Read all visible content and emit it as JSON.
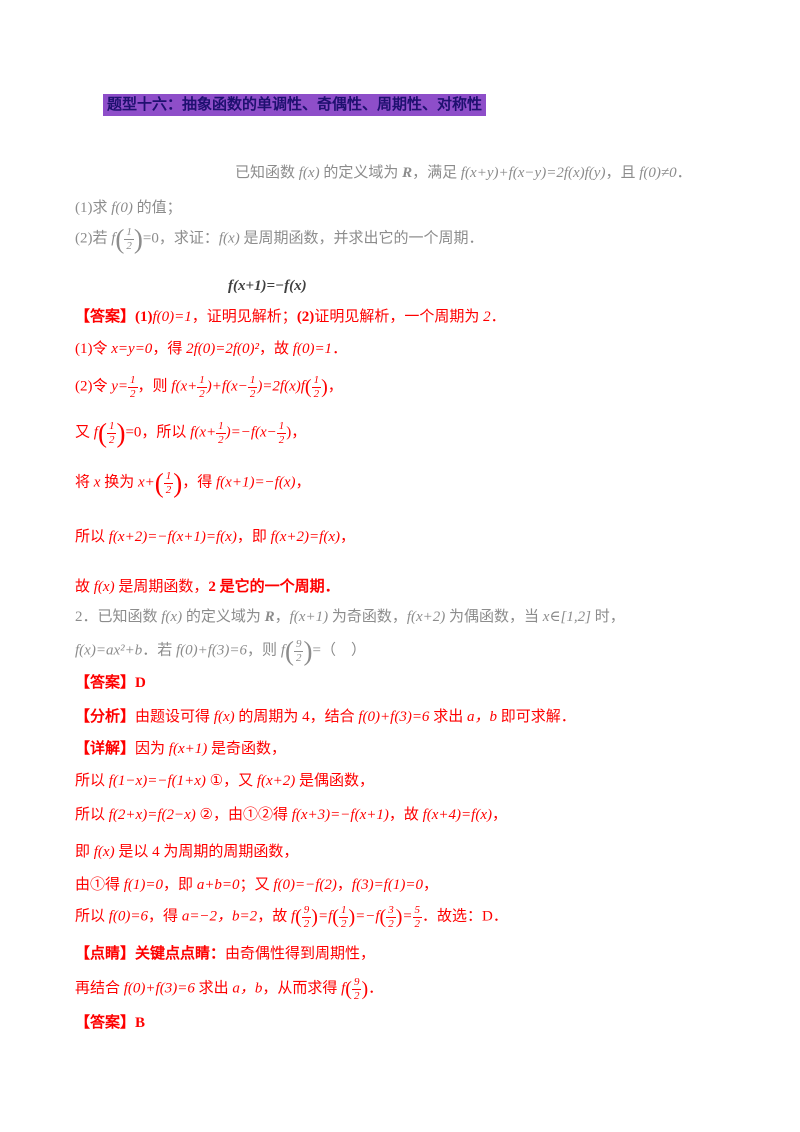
{
  "title": "题型十六：抽象函数的单调性、奇偶性、周期性、对称性",
  "colors": {
    "highlight_purple": "#8e4ec9",
    "title_text": "#1f1070",
    "solution_red": "#fe0000",
    "stem_gray": "#8c8c8c"
  },
  "problem1": {
    "stem": [
      {
        "t": "已知函数 "
      },
      {
        "t": "f(x)",
        "i": true
      },
      {
        "t": " 的定义域为 "
      },
      {
        "t": "R",
        "i": true,
        "b": true
      },
      {
        "t": "，满足 "
      },
      {
        "t": "f(x+y)+f(x−y)=2f(x)f(y)",
        "i": true
      },
      {
        "t": "，且 "
      },
      {
        "t": "f(0)≠0",
        "i": true
      },
      {
        "t": "．"
      }
    ],
    "question1": [
      {
        "t": "(1)求 "
      },
      {
        "t": "f(0)",
        "i": true
      },
      {
        "t": " 的值；"
      }
    ],
    "question2": [
      {
        "t": "(2)若 "
      },
      {
        "t": "f",
        "i": true
      },
      {
        "f": [
          "1",
          "2"
        ],
        "p": true,
        "big": true
      },
      {
        "t": "=0，求证："
      },
      {
        "t": "f(x)",
        "i": true
      },
      {
        "t": " 是周期函数，并求出它的一个周期．"
      }
    ],
    "display_equation": [
      {
        "t": "f(x+1)=−f(x)",
        "i": true,
        "b": true
      }
    ],
    "answer": [
      {
        "t": "【答案】",
        "b": true
      },
      {
        "t": "(1)",
        "b": true
      },
      {
        "t": "f(0)=1",
        "i": true
      },
      {
        "t": "，证明见解析；"
      },
      {
        "t": "(2)",
        "b": true
      },
      {
        "t": "证明见解析，一个周期为 "
      },
      {
        "t": "2",
        "i": true
      },
      {
        "t": "．"
      }
    ],
    "step1": [
      {
        "t": "(1)令 "
      },
      {
        "t": "x=y=0",
        "i": true
      },
      {
        "t": "，得 "
      },
      {
        "t": "2f(0)=2f(0)²",
        "i": true
      },
      {
        "t": "，故 "
      },
      {
        "t": "f(0)=1",
        "i": true
      },
      {
        "t": "．"
      }
    ],
    "step2": [
      {
        "t": "(2)令 "
      },
      {
        "t": "y=",
        "i": true
      },
      {
        "f": [
          "1",
          "2"
        ]
      },
      {
        "t": "，则 "
      },
      {
        "t": "f(x+",
        "i": true
      },
      {
        "f": [
          "1",
          "2"
        ]
      },
      {
        "t": ")+f(x−",
        "i": true
      },
      {
        "f": [
          "1",
          "2"
        ]
      },
      {
        "t": ")=2f(x)f",
        "i": true
      },
      {
        "f": [
          "1",
          "2"
        ],
        "p": true
      },
      {
        "t": "，"
      }
    ],
    "step3": [
      {
        "t": "又 "
      },
      {
        "t": "f",
        "i": true
      },
      {
        "f": [
          "1",
          "2"
        ],
        "p": true,
        "big": true
      },
      {
        "t": "=0，所以 "
      },
      {
        "t": "f(x+",
        "i": true
      },
      {
        "f": [
          "1",
          "2"
        ]
      },
      {
        "t": ")=−f(x−",
        "i": true
      },
      {
        "f": [
          "1",
          "2"
        ]
      },
      {
        "t": ")，"
      }
    ],
    "step4": [
      {
        "t": "将 "
      },
      {
        "t": "x",
        "i": true
      },
      {
        "t": " 换为 "
      },
      {
        "t": "x+",
        "i": true
      },
      {
        "f": [
          "1",
          "2"
        ],
        "p": true,
        "big": true
      },
      {
        "t": "，得 "
      },
      {
        "t": "f(x+1)=−f(x)",
        "i": true
      },
      {
        "t": "，"
      }
    ],
    "step5": [
      {
        "t": "所以 "
      },
      {
        "t": "f(x+2)=−f(x+1)=f(x)",
        "i": true
      },
      {
        "t": "，即 "
      },
      {
        "t": "f(x+2)=f(x)",
        "i": true
      },
      {
        "t": "，"
      }
    ],
    "step6": [
      {
        "t": "故 "
      },
      {
        "t": "f(x)",
        "i": true
      },
      {
        "t": " 是周期函数，"
      },
      {
        "t": "2 是它的一个周期．",
        "b": true
      }
    ]
  },
  "problem2": {
    "stem_line1": [
      {
        "t": "2．已知函数 "
      },
      {
        "t": "f(x)",
        "i": true
      },
      {
        "t": " 的定义域为 "
      },
      {
        "t": "R",
        "i": true,
        "b": true
      },
      {
        "t": "，"
      },
      {
        "t": "f(x+1)",
        "i": true
      },
      {
        "t": " 为奇函数，"
      },
      {
        "t": "f(x+2)",
        "i": true
      },
      {
        "t": " 为偶函数，当 "
      },
      {
        "t": "x∈[1,2]",
        "i": true
      },
      {
        "t": " 时，"
      }
    ],
    "stem_line2": [
      {
        "t": "f(x)=ax²+b",
        "i": true
      },
      {
        "t": "．若 "
      },
      {
        "t": "f(0)+f(3)=6",
        "i": true
      },
      {
        "t": "，则 "
      },
      {
        "t": "f",
        "i": true
      },
      {
        "f": [
          "9",
          "2"
        ],
        "p": true,
        "big": true
      },
      {
        "t": "=（　）"
      }
    ],
    "answer": [
      {
        "t": "【答案】",
        "b": true
      },
      {
        "t": "D",
        "b": true
      }
    ],
    "analysis": [
      {
        "t": "【分析】",
        "b": true
      },
      {
        "t": "由题设可得 "
      },
      {
        "t": "f(x)",
        "i": true
      },
      {
        "t": " 的周期为 4，结合 "
      },
      {
        "t": "f(0)+f(3)=6",
        "i": true
      },
      {
        "t": " 求出 "
      },
      {
        "t": "a，b",
        "i": true
      },
      {
        "t": " 即可求解．"
      }
    ],
    "step1": [
      {
        "t": "【详解】",
        "b": true
      },
      {
        "t": "因为 "
      },
      {
        "t": "f(x+1)",
        "i": true
      },
      {
        "t": " 是奇函数，"
      }
    ],
    "step2": [
      {
        "t": "所以 "
      },
      {
        "t": "f(1−x)=−f(1+x)",
        "i": true
      },
      {
        "t": " ①，又 "
      },
      {
        "t": "f(x+2)",
        "i": true
      },
      {
        "t": " 是偶函数，"
      }
    ],
    "step3": [
      {
        "t": "所以 "
      },
      {
        "t": "f(2+x)=f(2−x)",
        "i": true
      },
      {
        "t": " ②，由①②得 "
      },
      {
        "t": "f(x+3)=−f(x+1)",
        "i": true
      },
      {
        "t": "，故 "
      },
      {
        "t": "f(x+4)=f(x)",
        "i": true
      },
      {
        "t": "，"
      }
    ],
    "step4": [
      {
        "t": "即 "
      },
      {
        "t": "f(x)",
        "i": true
      },
      {
        "t": " 是以 4 为周期的周期函数，"
      }
    ],
    "step5": [
      {
        "t": "由①得 "
      },
      {
        "t": "f(1)=0",
        "i": true
      },
      {
        "t": "，即 "
      },
      {
        "t": "a+b=0",
        "i": true
      },
      {
        "t": "；又 "
      },
      {
        "t": "f(0)=−f(2)",
        "i": true
      },
      {
        "t": "，"
      },
      {
        "t": "f(3)=f(1)=0",
        "i": true
      },
      {
        "t": "，"
      }
    ],
    "step6": [
      {
        "t": "所以 "
      },
      {
        "t": "f(0)=6",
        "i": true
      },
      {
        "t": "，得 "
      },
      {
        "t": "a=−2，b=2",
        "i": true
      },
      {
        "t": "，故 "
      },
      {
        "t": "f",
        "i": true
      },
      {
        "f": [
          "9",
          "2"
        ],
        "p": true
      },
      {
        "t": "=f",
        "i": true
      },
      {
        "f": [
          "1",
          "2"
        ],
        "p": true
      },
      {
        "t": "=−f",
        "i": true
      },
      {
        "f": [
          "3",
          "2"
        ],
        "p": true
      },
      {
        "t": "=",
        "i": true
      },
      {
        "f": [
          "5",
          "2"
        ]
      },
      {
        "t": "．故选：D．"
      }
    ],
    "remark1": [
      {
        "t": "【点睛】",
        "b": true
      },
      {
        "t": "关键点点睛：",
        "b": true
      },
      {
        "t": "由奇偶性得到周期性，"
      }
    ],
    "remark2": [
      {
        "t": "再结合 "
      },
      {
        "t": "f(0)+f(3)=6",
        "i": true
      },
      {
        "t": " 求出 "
      },
      {
        "t": "a，b",
        "i": true
      },
      {
        "t": "，从而求得 "
      },
      {
        "t": "f",
        "i": true
      },
      {
        "f": [
          "9",
          "2"
        ],
        "p": true
      },
      {
        "t": "．"
      }
    ],
    "next_answer": [
      {
        "t": "【答案】",
        "b": true
      },
      {
        "t": "B",
        "b": true
      }
    ]
  }
}
